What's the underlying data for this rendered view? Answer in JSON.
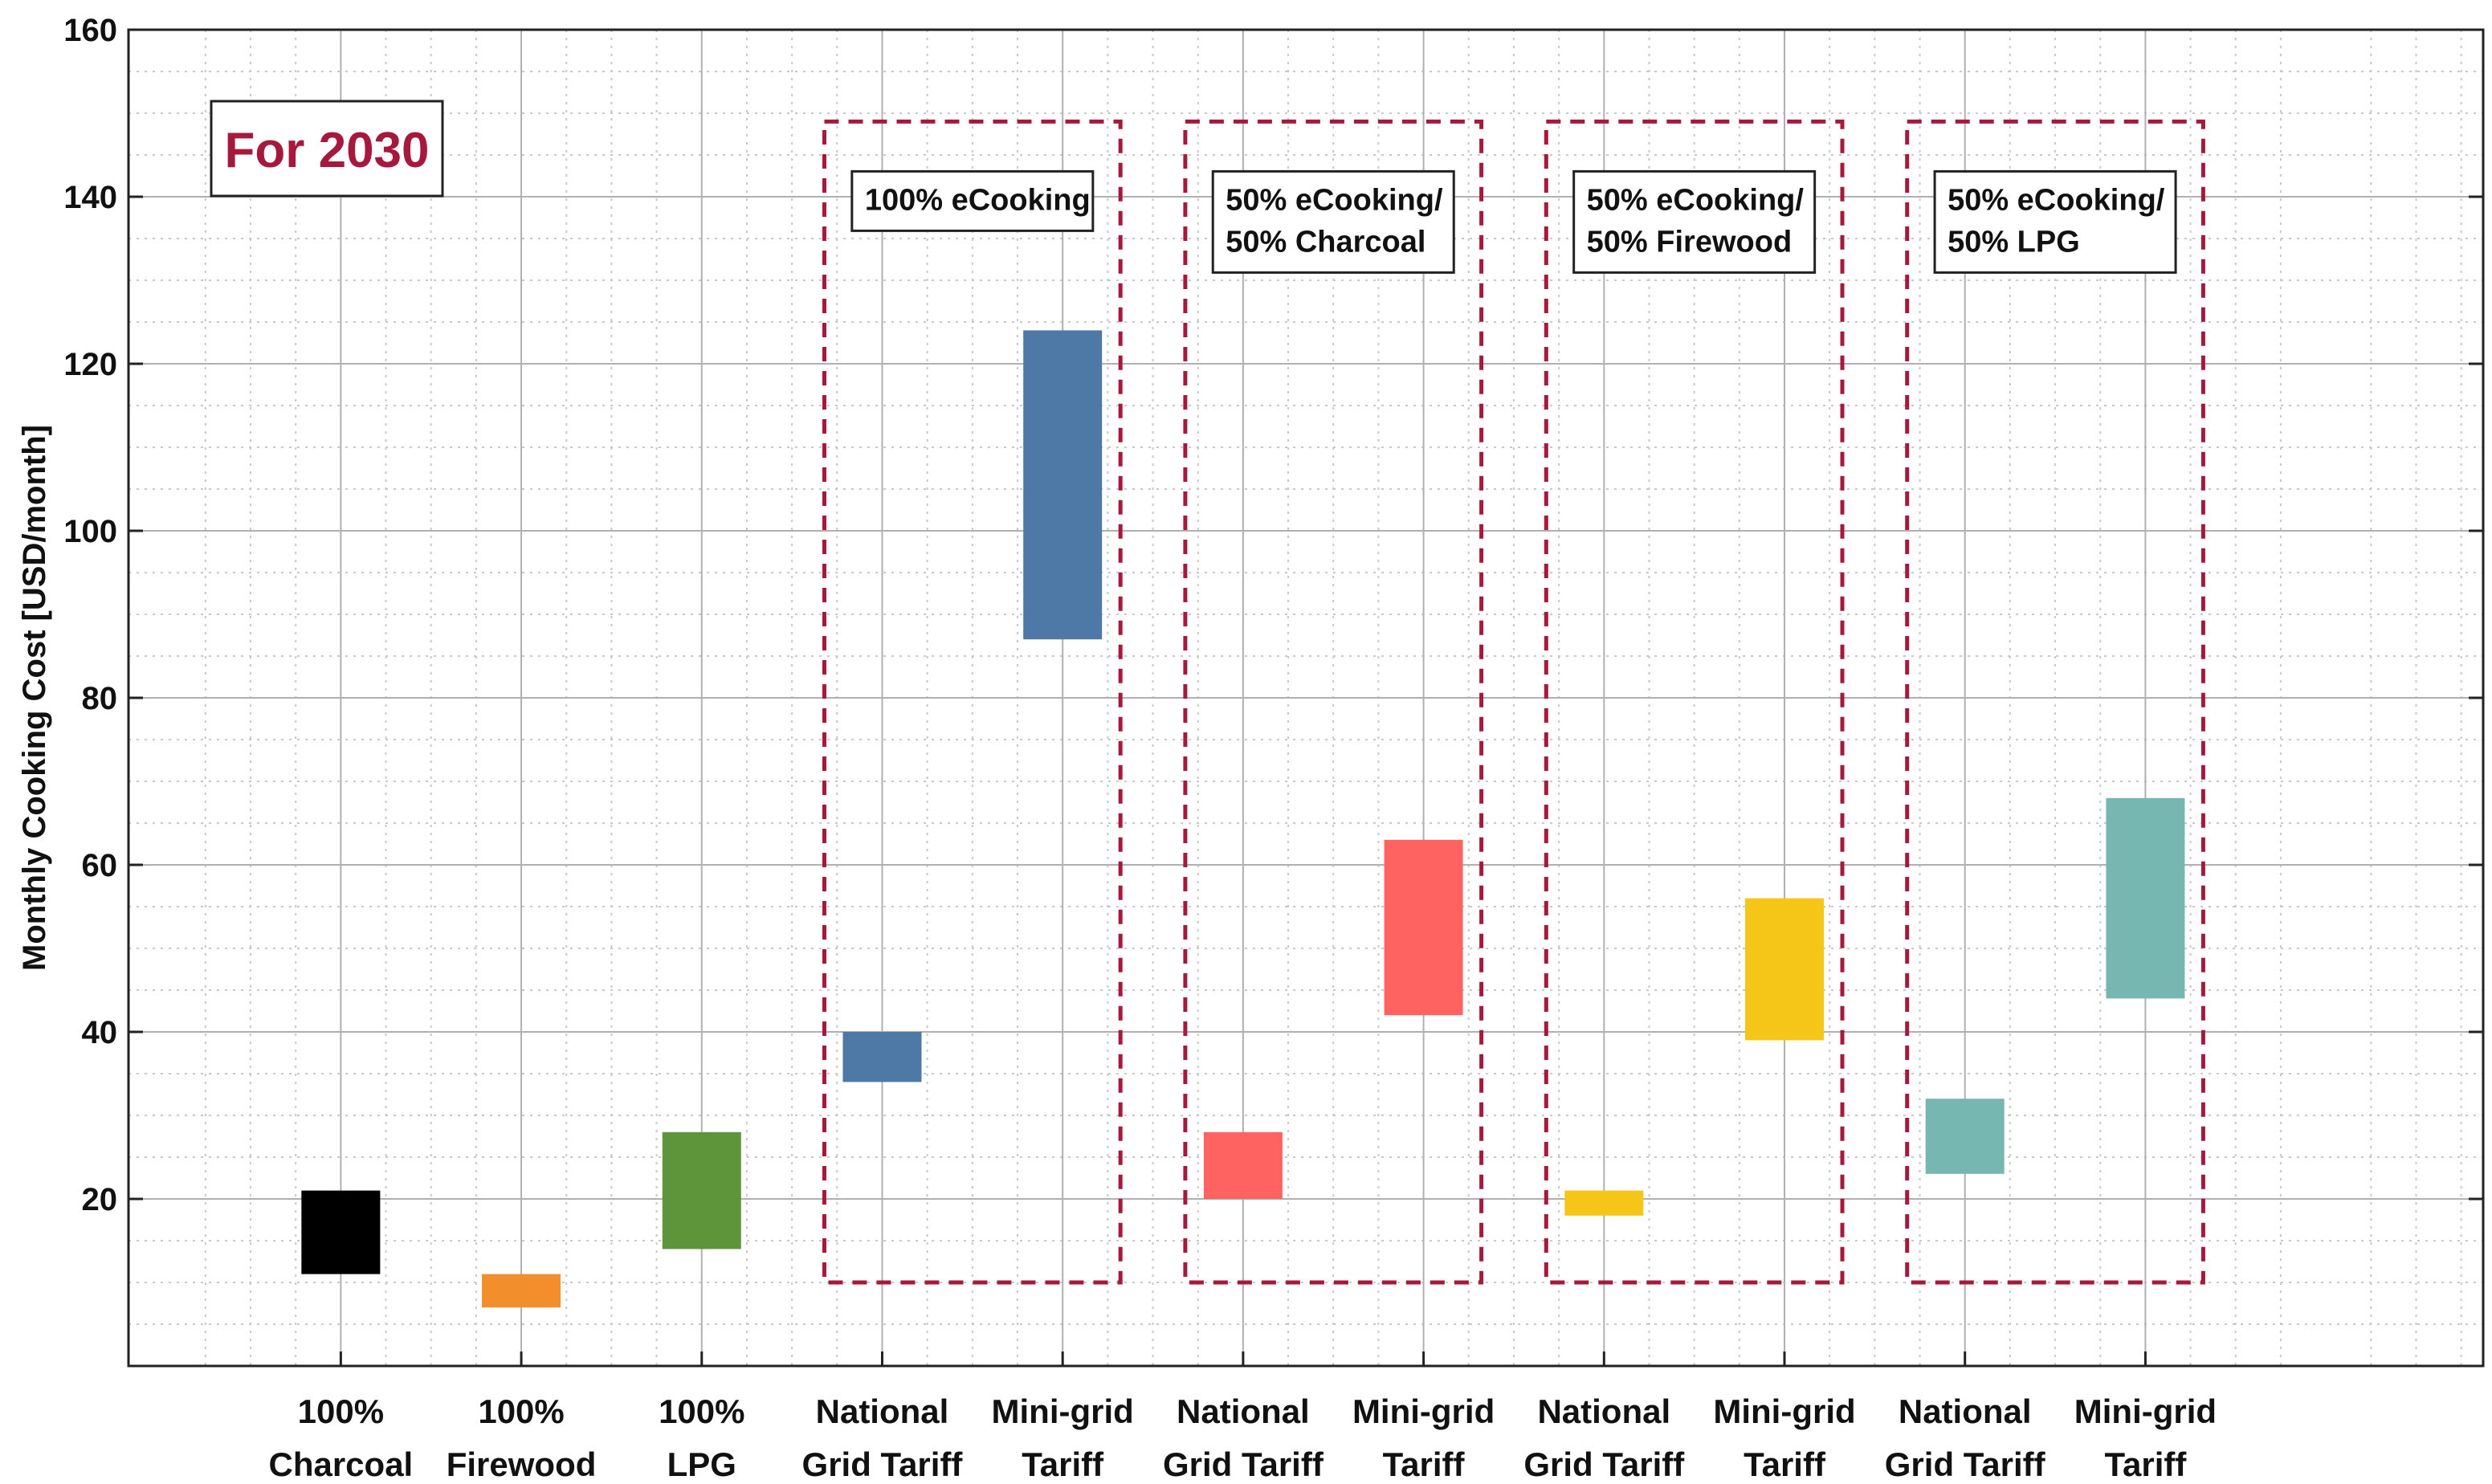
{
  "chart_data": {
    "type": "floating-bar",
    "ylabel": "Monthly Cooking Cost [USD/month]",
    "xlabel": "",
    "ylim": [
      0,
      160
    ],
    "yticks": [
      20,
      40,
      60,
      80,
      100,
      120,
      140,
      160
    ],
    "grid": true,
    "annotation": {
      "text": "For 2030",
      "color": "#A6193C"
    },
    "categories": [
      {
        "line1": "100%",
        "line2": "Charcoal",
        "low": 11,
        "high": 21,
        "color": "#000000"
      },
      {
        "line1": "100%",
        "line2": "Firewood",
        "low": 7,
        "high": 11,
        "color": "#F28E2B"
      },
      {
        "line1": "100%",
        "line2": "LPG",
        "low": 14,
        "high": 28,
        "color": "#5E953B"
      },
      {
        "line1": "National",
        "line2": "Grid Tariff",
        "low": 34,
        "high": 40,
        "color": "#4E79A7"
      },
      {
        "line1": "Mini-grid",
        "line2": "Tariff",
        "low": 87,
        "high": 124,
        "color": "#4E79A7"
      },
      {
        "line1": "National",
        "line2": "Grid Tariff",
        "low": 20,
        "high": 28,
        "color": "#FF6361"
      },
      {
        "line1": "Mini-grid",
        "line2": "Tariff",
        "low": 42,
        "high": 63,
        "color": "#FF6361"
      },
      {
        "line1": "National",
        "line2": "Grid Tariff",
        "low": 18,
        "high": 21,
        "color": "#F5C518"
      },
      {
        "line1": "Mini-grid",
        "line2": "Tariff",
        "low": 39,
        "high": 56,
        "color": "#F5C518"
      },
      {
        "line1": "National",
        "line2": "Grid Tariff",
        "low": 23,
        "high": 32,
        "color": "#76B7B2"
      },
      {
        "line1": "Mini-grid",
        "line2": "Tariff",
        "low": 44,
        "high": 68,
        "color": "#76B7B2"
      }
    ],
    "groups": [
      {
        "lines": [
          "100% eCooking"
        ],
        "first": 3,
        "last": 4,
        "ymin": 10,
        "ymax": 149
      },
      {
        "lines": [
          "50% eCooking/",
          "50% Charcoal"
        ],
        "first": 5,
        "last": 6,
        "ymin": 10,
        "ymax": 149
      },
      {
        "lines": [
          "50% eCooking/",
          "50% Firewood"
        ],
        "first": 7,
        "last": 8,
        "ymin": 10,
        "ymax": 149
      },
      {
        "lines": [
          "50% eCooking/",
          "50% LPG"
        ],
        "first": 9,
        "last": 10,
        "ymin": 10,
        "ymax": 149
      }
    ],
    "group_box_color": "#A6193C"
  }
}
